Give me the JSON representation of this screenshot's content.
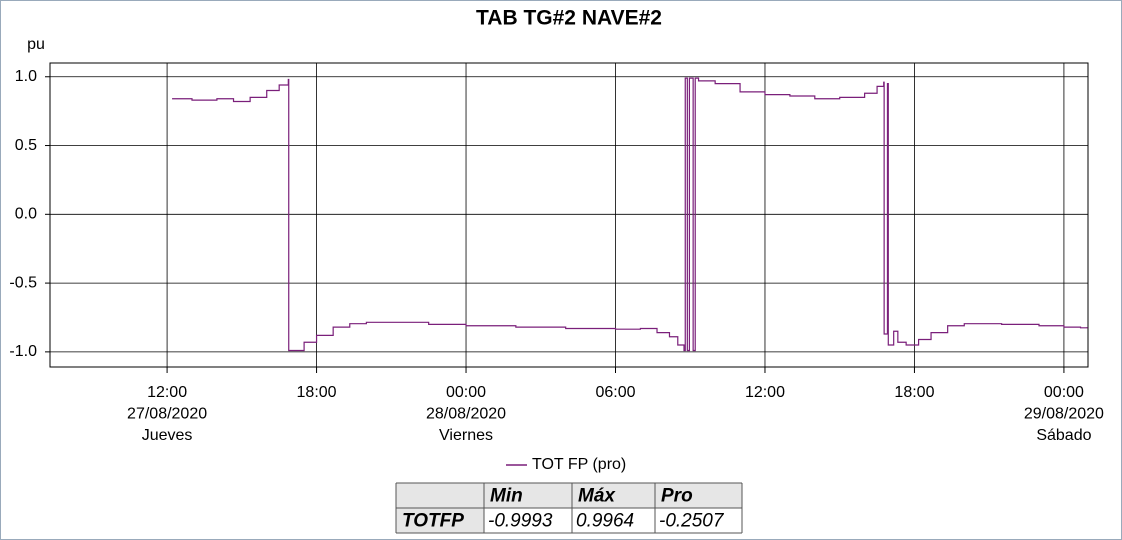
{
  "chart_data": {
    "type": "line",
    "title": "TAB TG#2 NAVE#2",
    "y_label": "pu",
    "step": "post",
    "grid": true,
    "ylim": [
      -1.11,
      1.1
    ],
    "yticks": [
      {
        "value": 1,
        "label": "1.0"
      },
      0.5,
      {
        "value": 0,
        "label": "0.0"
      },
      -0.5,
      {
        "value": -1,
        "label": "-1.0"
      }
    ],
    "xlim": [
      "2020-08-27T07:18",
      "2020-08-29T00:58"
    ],
    "xticks": [
      {
        "value": "2020-08-27T12:00",
        "label": [
          "12:00",
          "27/08/2020",
          "Jueves"
        ]
      },
      {
        "value": "2020-08-27T18:00",
        "label": [
          "18:00"
        ]
      },
      {
        "value": "2020-08-28T00:00",
        "label": [
          "00:00",
          "28/08/2020",
          "Viernes"
        ]
      },
      {
        "value": "2020-08-28T06:00",
        "label": [
          "06:00"
        ]
      },
      {
        "value": "2020-08-28T12:00",
        "label": [
          "12:00"
        ]
      },
      {
        "value": "2020-08-28T18:00",
        "label": [
          "18:00"
        ]
      },
      {
        "value": "2020-08-29T00:00",
        "label": [
          "00:00",
          "29/08/2020",
          "Sábado"
        ]
      }
    ],
    "x": [
      "2020-08-27T12:12",
      "2020-08-27T13:00",
      "2020-08-27T14:00",
      "2020-08-27T14:40",
      "2020-08-27T15:20",
      "2020-08-27T16:00",
      "2020-08-27T16:30",
      "2020-08-27T16:52",
      "2020-08-27T16:53",
      "2020-08-27T17:30",
      "2020-08-27T18:00",
      "2020-08-27T18:40",
      "2020-08-27T19:20",
      "2020-08-27T20:00",
      "2020-08-27T21:30",
      "2020-08-27T22:30",
      "2020-08-28T00:00",
      "2020-08-28T02:00",
      "2020-08-28T04:00",
      "2020-08-28T06:00",
      "2020-08-28T07:00",
      "2020-08-28T07:40",
      "2020-08-28T08:10",
      "2020-08-28T08:30",
      "2020-08-28T08:45",
      "2020-08-28T08:48",
      "2020-08-28T08:53",
      "2020-08-28T08:58",
      "2020-08-28T09:07",
      "2020-08-28T09:12",
      "2020-08-28T09:20",
      "2020-08-28T10:00",
      "2020-08-28T11:00",
      "2020-08-28T12:00",
      "2020-08-28T13:00",
      "2020-08-28T14:00",
      "2020-08-28T15:00",
      "2020-08-28T16:00",
      "2020-08-28T16:30",
      "2020-08-28T16:46",
      "2020-08-28T16:47",
      "2020-08-28T16:55",
      "2020-08-28T16:57",
      "2020-08-28T17:10",
      "2020-08-28T17:20",
      "2020-08-28T17:40",
      "2020-08-28T18:10",
      "2020-08-28T18:40",
      "2020-08-28T19:20",
      "2020-08-28T20:00",
      "2020-08-28T21:30",
      "2020-08-28T23:00",
      "2020-08-29T00:00",
      "2020-08-29T00:40",
      "2020-08-29T00:56"
    ],
    "series": [
      {
        "name": "TOT FP (pro)",
        "color": "#7a1f7a",
        "values": [
          0.84,
          0.83,
          0.84,
          0.82,
          0.85,
          0.9,
          0.94,
          0.98,
          -0.99,
          -0.93,
          -0.88,
          -0.82,
          -0.795,
          -0.785,
          -0.785,
          -0.8,
          -0.81,
          -0.82,
          -0.83,
          -0.835,
          -0.83,
          -0.86,
          -0.89,
          -0.95,
          -0.99,
          0.99,
          -0.99,
          0.99,
          -0.99,
          0.99,
          0.97,
          0.95,
          0.89,
          0.87,
          0.86,
          0.84,
          0.85,
          0.88,
          0.93,
          0.96,
          -0.87,
          0.95,
          -0.95,
          -0.85,
          -0.93,
          -0.95,
          -0.91,
          -0.86,
          -0.81,
          -0.795,
          -0.8,
          -0.81,
          -0.82,
          -0.825,
          -0.82
        ]
      }
    ],
    "stats_table": {
      "columns": [
        "Min",
        "Máx",
        "Pro"
      ],
      "rows": [
        {
          "label": "TOTFP",
          "cells": [
            "-0.9993",
            "0.9964",
            "-0.2507"
          ]
        }
      ]
    }
  }
}
